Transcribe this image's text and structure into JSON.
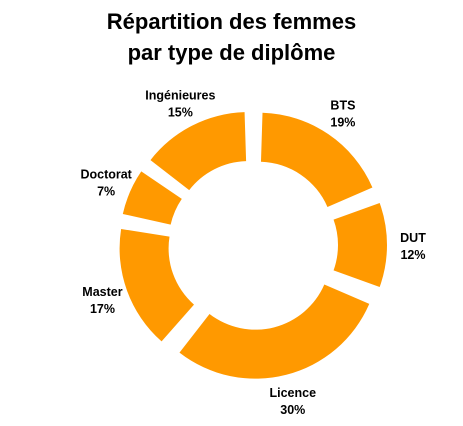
{
  "chart_data": {
    "type": "donut",
    "title_lines": [
      "Répartition des femmes",
      "par type de diplôme"
    ],
    "fill_color": "#ff9900",
    "slices": [
      {
        "name": "BTS",
        "pct_label": "19%",
        "value": 19
      },
      {
        "name": "DUT",
        "pct_label": "12%",
        "value": 12
      },
      {
        "name": "Licence",
        "pct_label": "30%",
        "value": 30
      },
      {
        "name": "Master",
        "pct_label": "17%",
        "value": 17
      },
      {
        "name": "Doctorat",
        "pct_label": "7%",
        "value": 7
      },
      {
        "name": "Ingénieures",
        "pct_label": "15%",
        "value": 15
      }
    ]
  }
}
